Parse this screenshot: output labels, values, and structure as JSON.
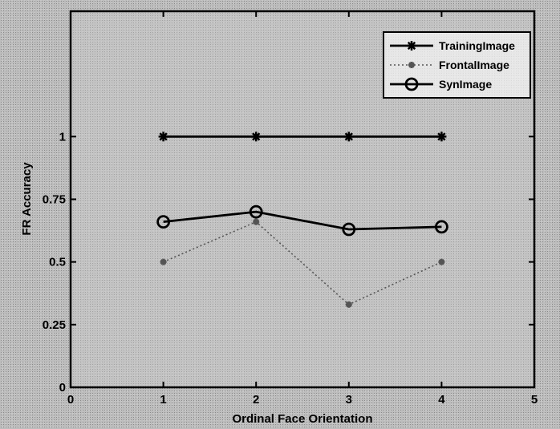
{
  "chart_data": {
    "type": "line",
    "title": "",
    "xlabel": "Ordinal Face Orientation",
    "ylabel": "FR Accuracy",
    "xlim": [
      0,
      5
    ],
    "ylim": [
      0,
      1.5
    ],
    "x_ticks": [
      "0",
      "1",
      "2",
      "3",
      "4",
      "5"
    ],
    "y_ticks": [
      "0",
      "0.25",
      "0.5",
      "0.75",
      "1"
    ],
    "grid": false,
    "legend_position": "top-right",
    "x": [
      1,
      2,
      3,
      4
    ],
    "series": [
      {
        "name": "TrainingImage",
        "marker": "star",
        "line": "solid",
        "color": "#000000",
        "values": [
          1.0,
          1.0,
          1.0,
          1.0
        ]
      },
      {
        "name": "FrontalImage",
        "marker": "star",
        "line": "dotted",
        "color": "#555555",
        "values": [
          0.5,
          0.66,
          0.33,
          0.5
        ]
      },
      {
        "name": "SynImage",
        "marker": "circle",
        "line": "solid",
        "color": "#000000",
        "values": [
          0.66,
          0.7,
          0.63,
          0.64
        ]
      }
    ]
  }
}
